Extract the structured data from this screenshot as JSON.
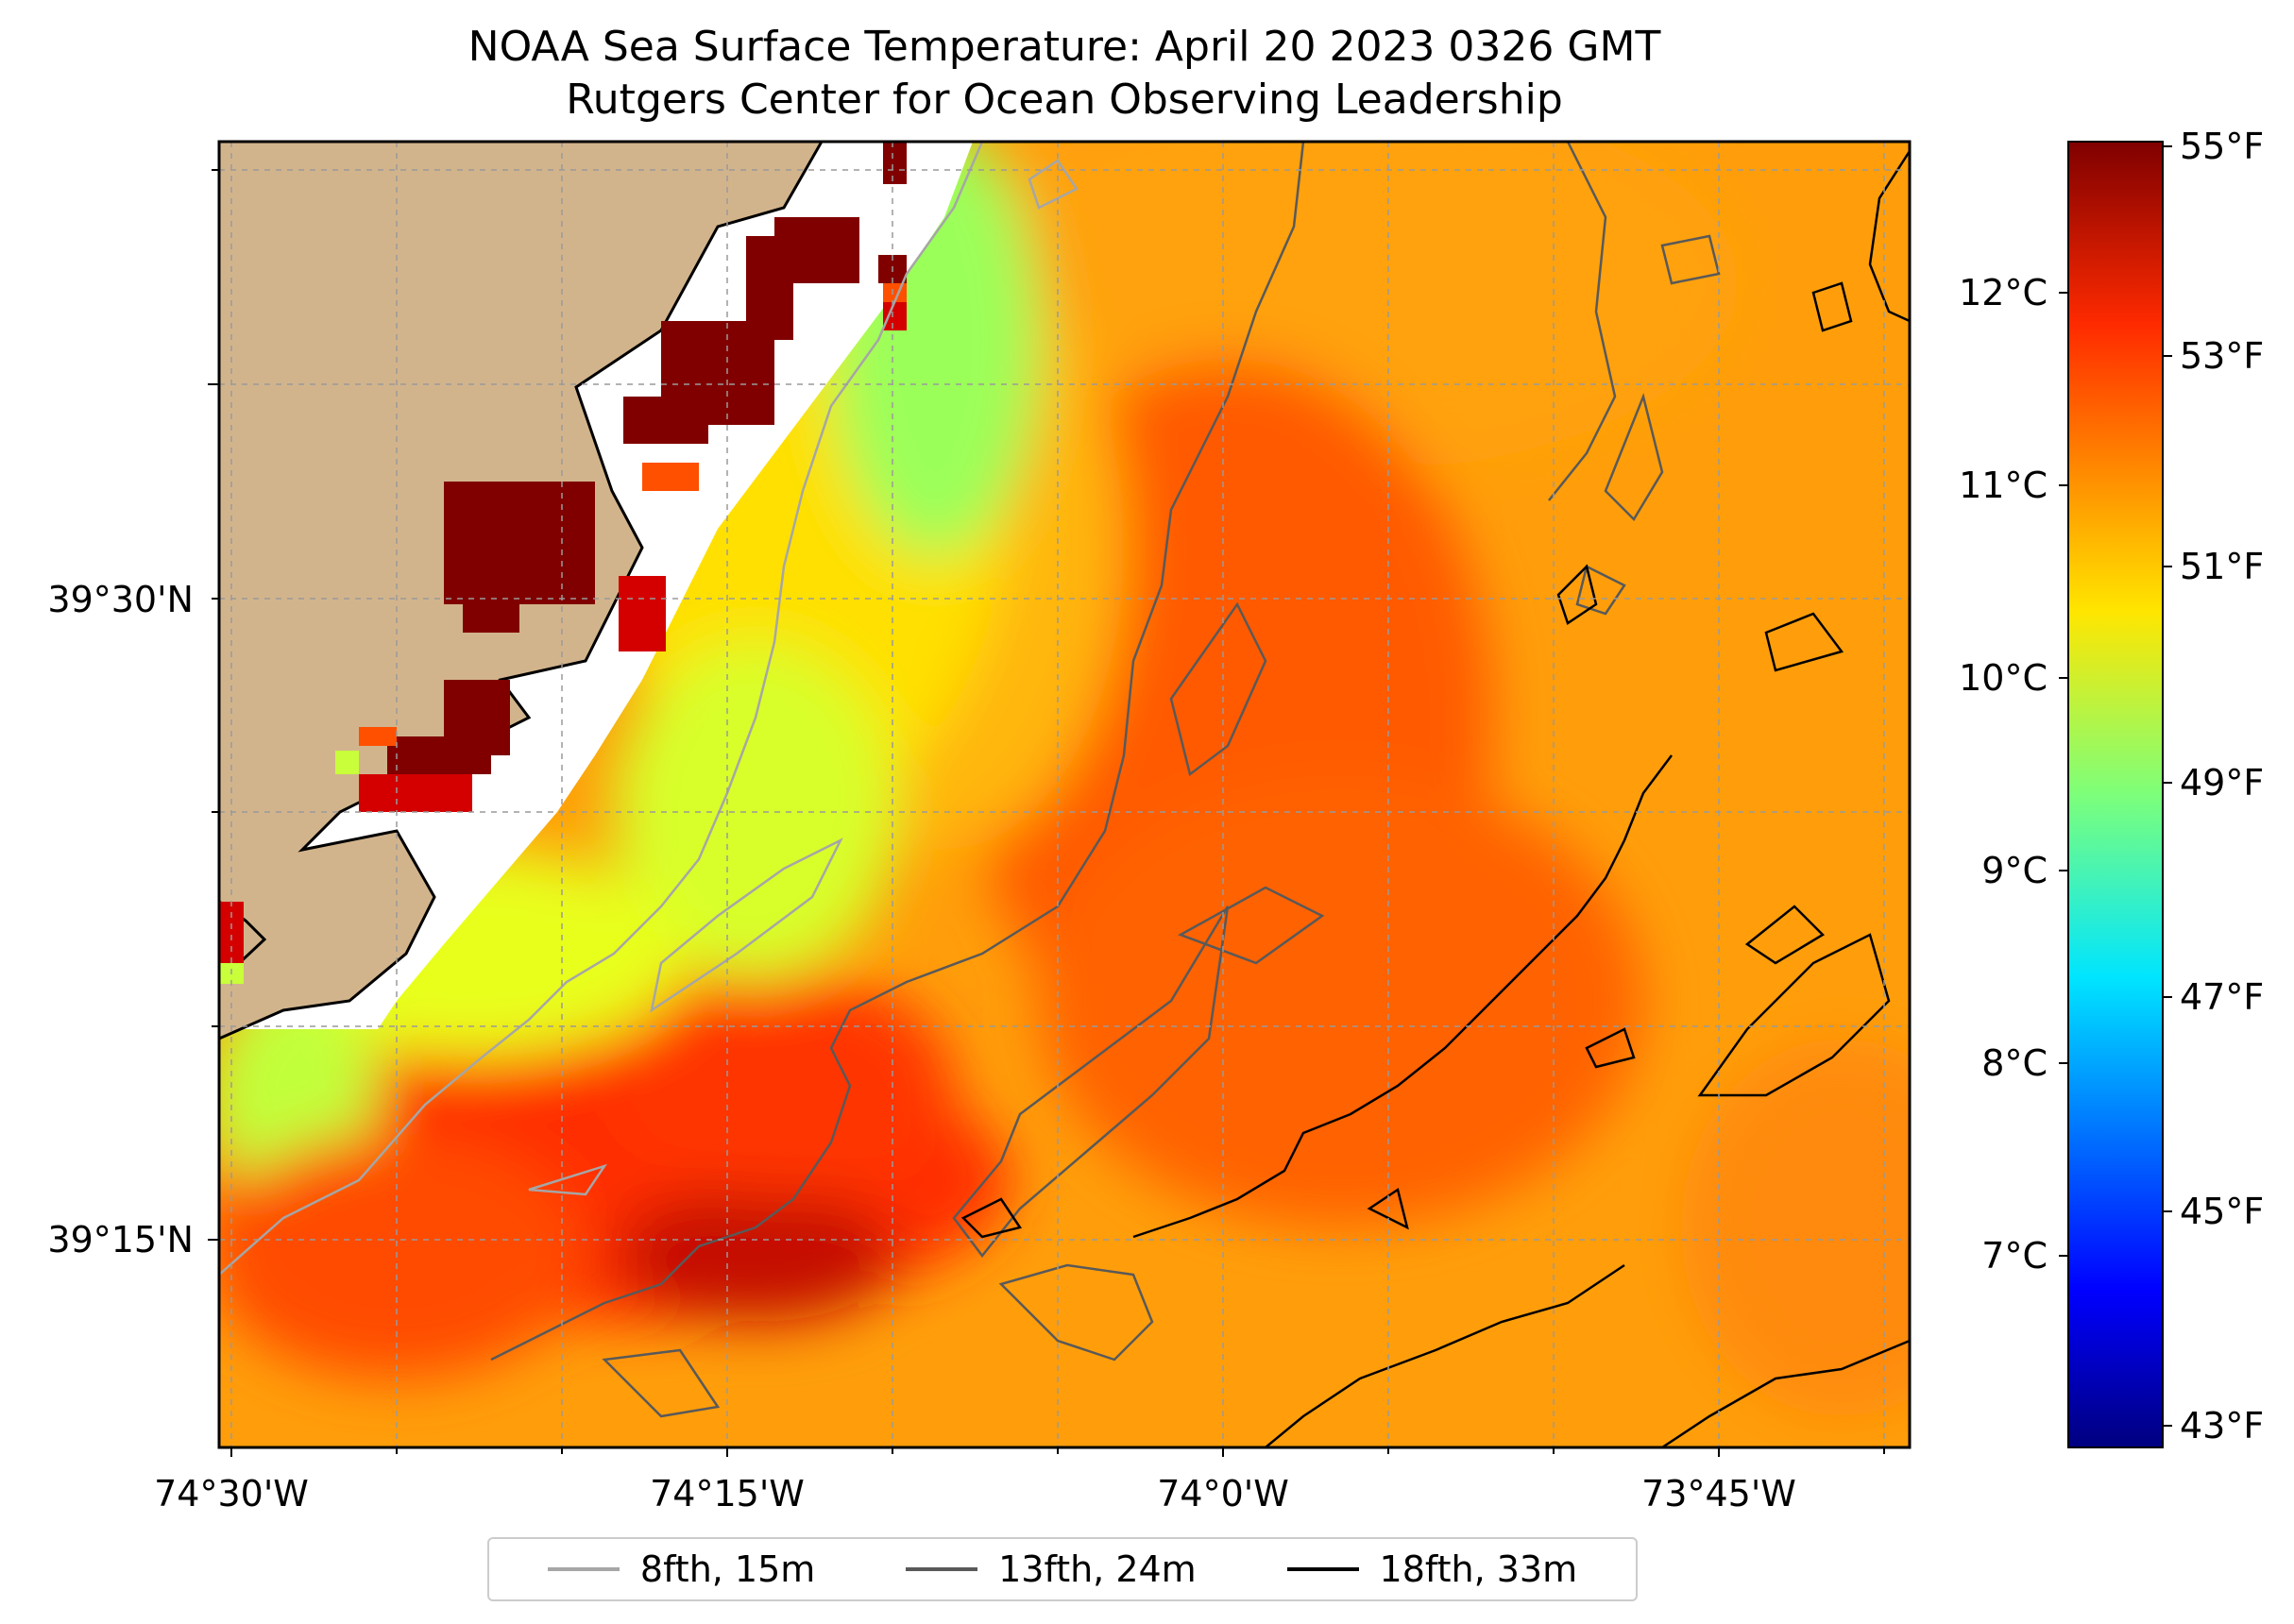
{
  "title": {
    "line1": "NOAA Sea Surface Temperature: April 20 2023 0326 GMT",
    "line2": "Rutgers Center for Ocean Observing Leadership"
  },
  "map": {
    "lon_ticks": [
      "74°30'W",
      "74°15'W",
      "74°0'W",
      "73°45'W"
    ],
    "lat_ticks": [
      "39°30'N",
      "39°15'N"
    ],
    "land_color": "#d2b48c",
    "gridlines": true
  },
  "colorbar": {
    "colormap": "jet",
    "fahrenheit_ticks": [
      "55°F",
      "53°F",
      "51°F",
      "49°F",
      "47°F",
      "45°F",
      "43°F"
    ],
    "celsius_ticks": [
      "12°C",
      "11°C",
      "10°C",
      "9°C",
      "8°C",
      "7°C"
    ],
    "range_f": [
      42.8,
      55.2
    ]
  },
  "legend": {
    "items": [
      {
        "label": "8fth, 15m",
        "color": "#a6a6a6"
      },
      {
        "label": "13fth, 24m",
        "color": "#595959"
      },
      {
        "label": "18fth, 33m",
        "color": "#000000"
      }
    ]
  }
}
